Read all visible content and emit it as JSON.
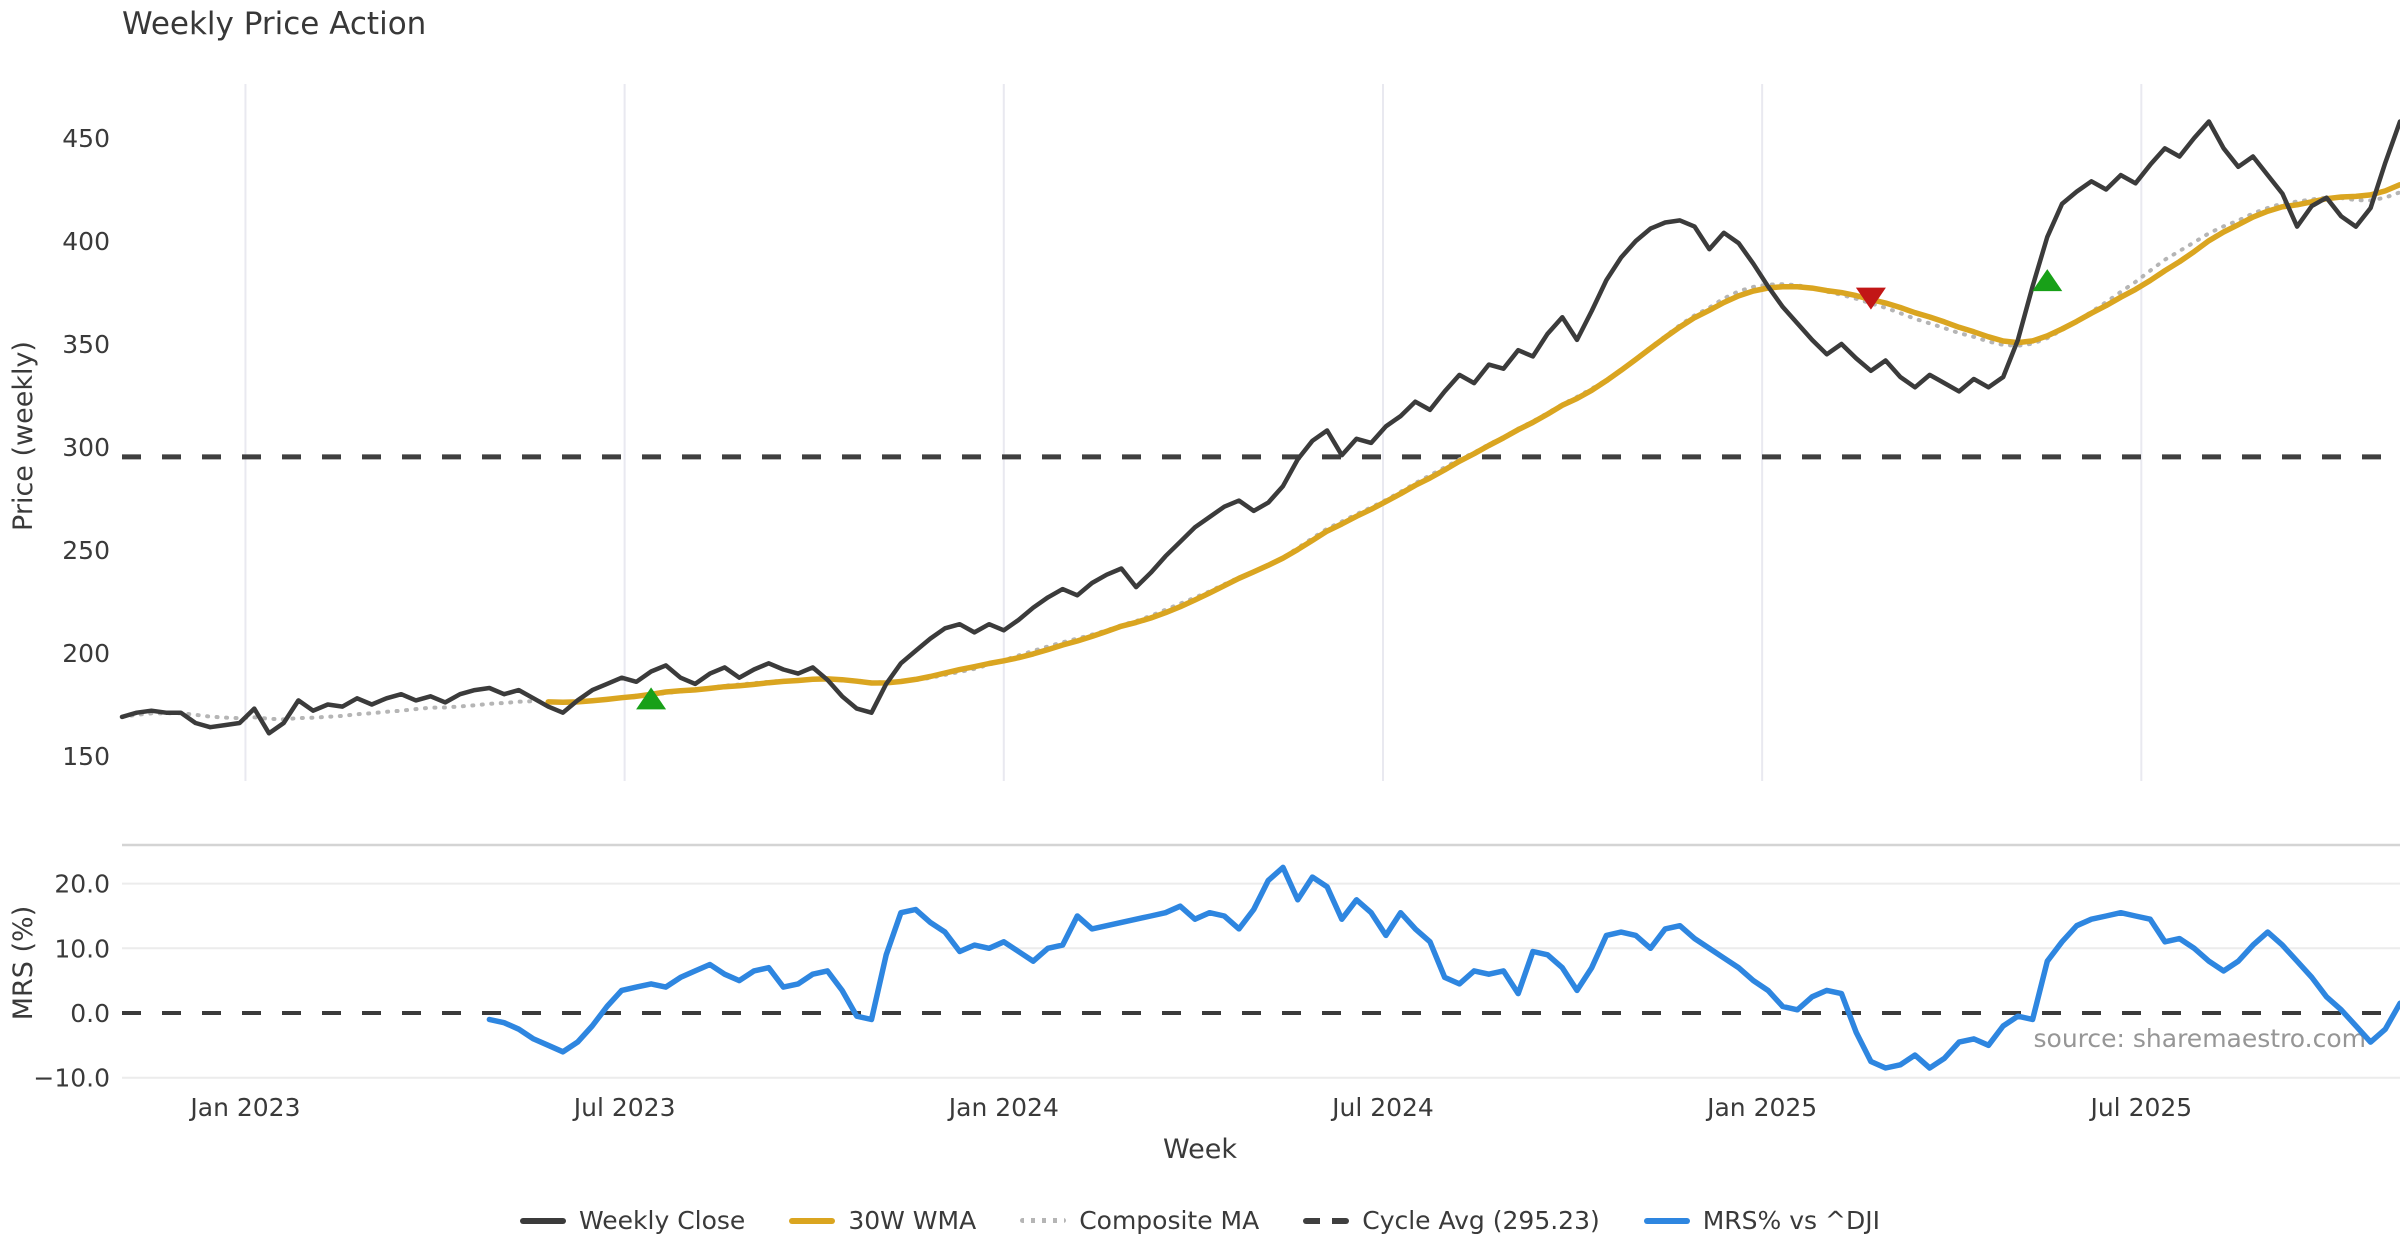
{
  "title": "Weekly Price Action",
  "xlabel": "Week",
  "source_note": "source: sharemaestro.com",
  "colors": {
    "weekly_close": "#3b3b3b",
    "wma": "#DAA520",
    "composite": "#b5b5b5",
    "cycle_avg": "#3f3f3f",
    "mrs": "#2e86e0",
    "buy_marker": "#18a018",
    "sell_marker": "#c21616",
    "grid_vertical": "#e9e9f0",
    "grid_horizontal": "#ececec",
    "panel_border": "#d4d4d4"
  },
  "legend": {
    "items": [
      {
        "label": "Weekly Close",
        "style": "solid",
        "color": "#3b3b3b"
      },
      {
        "label": "30W WMA",
        "style": "solid",
        "color": "#DAA520"
      },
      {
        "label": "Composite MA",
        "style": "dotted",
        "color": "#b5b5b5"
      },
      {
        "label": "Cycle Avg (295.23)",
        "style": "dashed",
        "color": "#3f3f3f"
      },
      {
        "label": "MRS% vs ^DJI",
        "style": "solid",
        "color": "#2e86e0"
      }
    ]
  },
  "chart_data": [
    {
      "type": "line",
      "panel": "price",
      "title": "Weekly Price Action",
      "ylabel": "Price (weekly)",
      "ylim": [
        138,
        476
      ],
      "yticks": [
        150,
        200,
        250,
        300,
        350,
        400,
        450
      ],
      "ytick_labels": [
        "150",
        "200",
        "250",
        "300",
        "350",
        "400",
        "450"
      ],
      "xtick_labels": [
        "Jan 2023",
        "Jul 2023",
        "Jan 2024",
        "Jul 2024",
        "Jan 2025",
        "Jul 2025"
      ],
      "xtick_weeks": [
        8.4,
        34.2,
        60.0,
        85.8,
        111.6,
        137.4
      ],
      "xlim_weeks": [
        0,
        155
      ],
      "grid": "vertical-only",
      "legend_position": "bottom",
      "cycle_avg_value": 295.23,
      "series": [
        {
          "name": "Weekly Close",
          "style": "solid",
          "start_week": 0,
          "values": [
            169,
            171,
            172,
            171,
            171,
            166,
            164,
            165,
            166,
            173,
            161,
            166,
            177,
            172,
            175,
            174,
            178,
            175,
            178,
            180,
            177,
            179,
            176,
            180,
            182,
            183,
            180,
            182,
            178,
            174,
            171,
            177,
            182,
            185,
            188,
            186,
            191,
            194,
            188,
            185,
            190,
            193,
            188,
            192,
            195,
            192,
            190,
            193,
            187,
            179,
            173,
            171,
            185,
            195,
            201,
            207,
            212,
            214,
            210,
            214,
            211,
            216,
            222,
            227,
            231,
            228,
            234,
            238,
            241,
            232,
            239,
            247,
            254,
            261,
            266,
            271,
            274,
            269,
            273,
            281,
            294,
            303,
            308,
            296,
            304,
            302,
            310,
            315,
            322,
            318,
            327,
            335,
            331,
            340,
            338,
            347,
            344,
            355,
            363,
            352,
            366,
            381,
            392,
            400,
            406,
            409,
            410,
            407,
            396,
            404,
            399,
            389,
            378,
            368,
            360,
            352,
            345,
            350,
            343,
            337,
            342,
            334,
            329,
            335,
            331,
            327,
            333,
            329,
            334,
            352,
            378,
            402,
            418,
            424,
            429,
            425,
            432,
            428,
            437,
            445,
            441,
            450,
            458,
            445,
            436,
            441,
            432,
            423,
            407,
            417,
            421,
            412,
            407,
            416,
            438,
            458
          ]
        },
        {
          "name": "30W WMA",
          "style": "solid",
          "derived": "wma30_of_weekly_close"
        },
        {
          "name": "Composite MA",
          "style": "dotted",
          "derived": "avg_of_sma10_sma20_sma30"
        },
        {
          "name": "Cycle Avg",
          "style": "dashed",
          "value": 295.23
        }
      ],
      "markers": [
        {
          "shape": "triangle-up",
          "meaning": "buy-signal",
          "week": 36,
          "value": 178
        },
        {
          "shape": "triangle-down",
          "meaning": "sell-signal",
          "week": 119,
          "value": 372
        },
        {
          "shape": "triangle-up",
          "meaning": "buy-signal",
          "week": 131,
          "value": 381
        }
      ]
    },
    {
      "type": "line",
      "panel": "mrs",
      "ylabel": "MRS (%)",
      "ylim": [
        -11,
        26
      ],
      "yticks": [
        -10,
        0,
        10,
        20
      ],
      "ytick_labels": [
        "−10.0",
        "0.0",
        "10.0",
        "20.0"
      ],
      "zero_line": "dashed",
      "grid": "horizontal-only",
      "series": [
        {
          "name": "MRS% vs ^DJI",
          "style": "solid",
          "start_week": 25,
          "values": [
            -1,
            -1.5,
            -2.5,
            -4,
            -5,
            -6,
            -4.5,
            -2,
            1,
            3.5,
            4,
            4.5,
            4,
            5.5,
            6.5,
            7.5,
            6,
            5,
            6.5,
            7,
            4,
            4.5,
            6,
            6.5,
            3.5,
            -0.5,
            -1,
            9,
            15.5,
            16,
            14,
            12.5,
            9.5,
            10.5,
            10,
            11,
            9.5,
            8,
            10,
            10.5,
            15,
            13,
            13.5,
            14,
            14.5,
            15,
            15.5,
            16.5,
            14.5,
            15.5,
            15,
            13,
            16,
            20.5,
            22.5,
            17.5,
            21,
            19.5,
            14.5,
            17.5,
            15.5,
            12,
            15.5,
            13,
            11,
            5.5,
            4.5,
            6.5,
            6,
            6.5,
            3,
            9.5,
            9,
            7,
            3.5,
            7,
            12,
            12.5,
            12,
            10,
            13,
            13.5,
            11.5,
            10,
            8.5,
            7,
            5,
            3.5,
            1,
            0.5,
            2.5,
            3.5,
            3,
            -3,
            -7.5,
            -8.5,
            -8,
            -6.5,
            -8.5,
            -7,
            -4.5,
            -4,
            -5,
            -2,
            -0.5,
            -1,
            8,
            11,
            13.5,
            14.5,
            15,
            15.5,
            15,
            14.5,
            11,
            11.5,
            10,
            8,
            6.5,
            8,
            10.5,
            12.5,
            10.5,
            8,
            5.5,
            2.5,
            0.5,
            -2,
            -4.5,
            -2.5,
            1.5
          ]
        }
      ]
    }
  ]
}
